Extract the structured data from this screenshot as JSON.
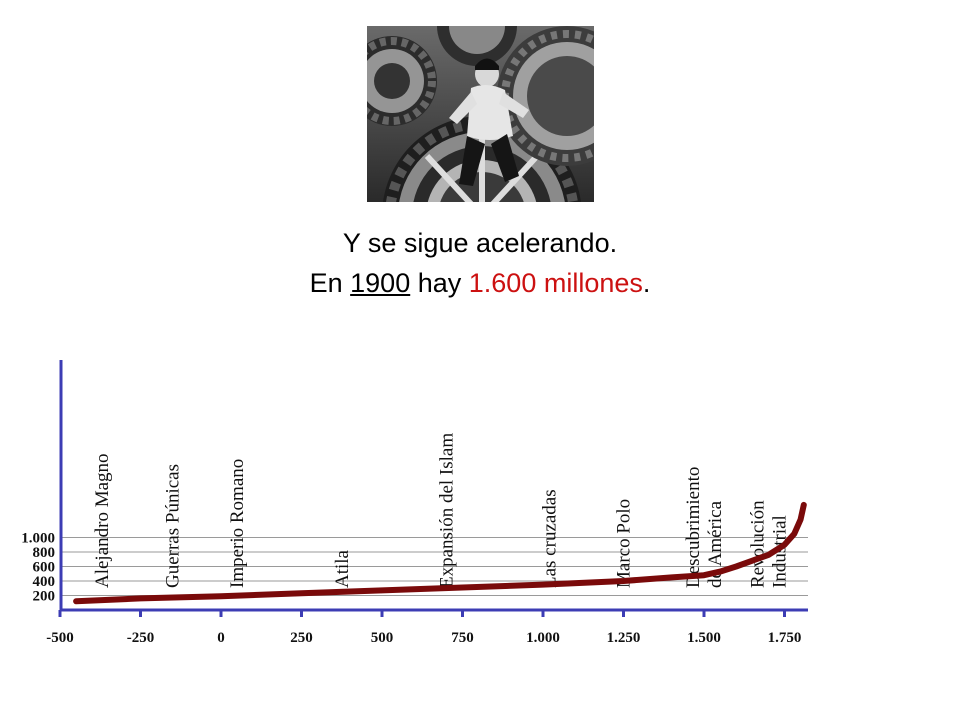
{
  "headline": {
    "line1": "Y se sigue acelerando.",
    "line2_prefix": "En ",
    "line2_year": "1900",
    "line2_mid": " hay ",
    "line2_highlight": "1.600 millones",
    "line2_suffix": ".",
    "highlight_color": "#cc1111"
  },
  "photo": {
    "icon": "film-still-gears"
  },
  "chart_data": {
    "type": "line",
    "x_ticks": [
      -500,
      -250,
      0,
      250,
      500,
      750,
      1000,
      1250,
      1500,
      1750
    ],
    "x_tick_labels": [
      "-500",
      "-250",
      "0",
      "250",
      "500",
      "750",
      "1.000",
      "1.250",
      "1.500",
      "1.750"
    ],
    "y_ticks": [
      200,
      400,
      600,
      800,
      1000
    ],
    "y_tick_labels": [
      "200",
      "400",
      "600",
      "800",
      "1.000"
    ],
    "xlim": [
      -560,
      1810
    ],
    "ylim": [
      0,
      1600
    ],
    "grid": true,
    "line_color": "#7a0a0a",
    "axis_color": "#3c3cb4",
    "series": [
      {
        "x": [
          -450,
          -250,
          0,
          250,
          500,
          750,
          1000,
          1250,
          1400,
          1500,
          1550,
          1600,
          1650,
          1700,
          1750,
          1780,
          1800,
          1810
        ],
        "y": [
          120,
          160,
          190,
          230,
          270,
          310,
          350,
          400,
          450,
          480,
          530,
          600,
          680,
          760,
          900,
          1050,
          1250,
          1450
        ]
      }
    ],
    "annotations": [
      {
        "x": -370,
        "lines": [
          "Alejandro Magno"
        ]
      },
      {
        "x": -150,
        "lines": [
          "Guerras Púnicas"
        ]
      },
      {
        "x": 50,
        "lines": [
          "Imperio Romano"
        ]
      },
      {
        "x": 375,
        "lines": [
          "Atila"
        ]
      },
      {
        "x": 700,
        "lines": [
          "Expansión del Islam"
        ]
      },
      {
        "x": 1020,
        "lines": [
          "Las cruzadas"
        ]
      },
      {
        "x": 1250,
        "lines": [
          "Marco Polo"
        ]
      },
      {
        "x": 1500,
        "lines": [
          "Descubrimiento",
          "de América"
        ]
      },
      {
        "x": 1700,
        "lines": [
          "Revolución",
          "Industrial"
        ]
      }
    ]
  }
}
